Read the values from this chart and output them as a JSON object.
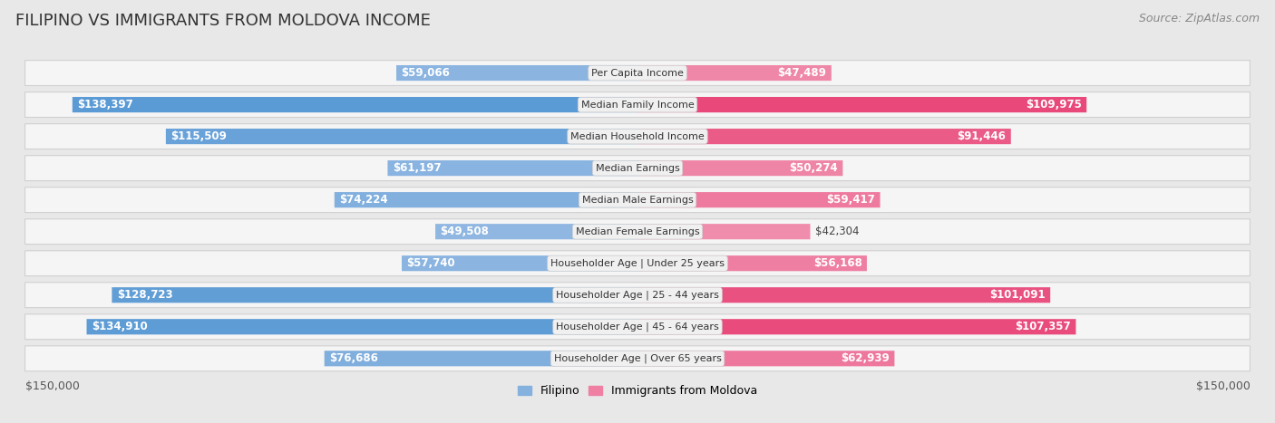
{
  "title": "FILIPINO VS IMMIGRANTS FROM MOLDOVA INCOME",
  "source": "Source: ZipAtlas.com",
  "categories": [
    "Per Capita Income",
    "Median Family Income",
    "Median Household Income",
    "Median Earnings",
    "Median Male Earnings",
    "Median Female Earnings",
    "Householder Age | Under 25 years",
    "Householder Age | 25 - 44 years",
    "Householder Age | 45 - 64 years",
    "Householder Age | Over 65 years"
  ],
  "filipino_values": [
    59066,
    138397,
    115509,
    61197,
    74224,
    49508,
    57740,
    128723,
    134910,
    76686
  ],
  "moldova_values": [
    47489,
    109975,
    91446,
    50274,
    59417,
    42304,
    56168,
    101091,
    107357,
    62939
  ],
  "max_value": 150000,
  "filipino_color_low": "#aec6e8",
  "filipino_color_high": "#5b9bd5",
  "moldova_color_low": "#f5b8cb",
  "moldova_color_high": "#e8487a",
  "filipino_label": "Filipino",
  "moldova_label": "Immigrants from Moldova",
  "background_color": "#e8e8e8",
  "row_bg_color": "#f5f5f5",
  "row_border_color": "#d0d0d0",
  "label_bg_color": "#f0f0f0",
  "axis_label": "$150,000",
  "title_fontsize": 13,
  "source_fontsize": 9,
  "bar_label_fontsize": 8.5,
  "category_fontsize": 8,
  "legend_fontsize": 9,
  "inside_threshold": 0.3
}
